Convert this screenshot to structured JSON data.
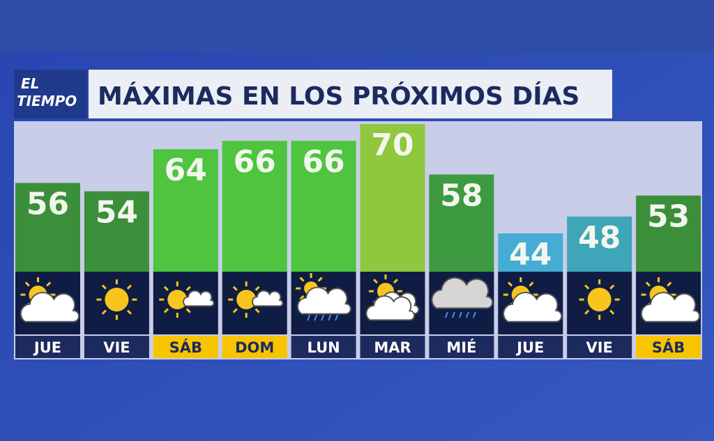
{
  "logo": [
    "EL",
    "TIEMPO"
  ],
  "chart_data": {
    "type": "bar",
    "title": "MÁXIMAS EN LOS PRÓXIMOS DÍAS",
    "categories": [
      "JUE",
      "VIE",
      "SÁB",
      "DOM",
      "LUN",
      "MAR",
      "MIÉ",
      "JUE",
      "VIE",
      "SÁB"
    ],
    "values": [
      56,
      54,
      64,
      66,
      66,
      70,
      58,
      44,
      48,
      53
    ],
    "colors": [
      "#3c8f3a",
      "#3c8f3a",
      "#4ec43f",
      "#4ec43f",
      "#4ec43f",
      "#8fc73d",
      "#3d9a40",
      "#45acd6",
      "#3fa5b8",
      "#3c8f3a"
    ],
    "highlight": [
      false,
      false,
      true,
      true,
      false,
      false,
      false,
      false,
      false,
      true
    ],
    "highlight_color": "#f7c400",
    "label_color": "#1d2a5e"
  }
}
